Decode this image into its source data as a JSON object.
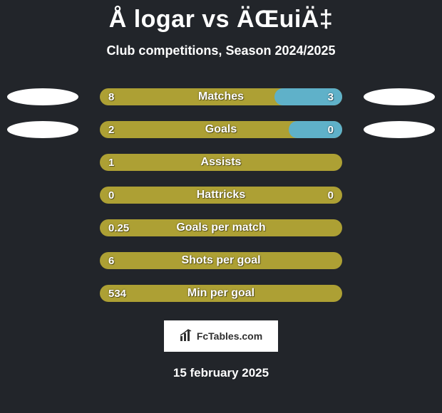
{
  "colors": {
    "background": "#22252a",
    "bar_primary": "#ada034",
    "bar_secondary": "#5fb1c9",
    "bar_split_right_bg": "#5fb1c9",
    "ellipse": "#ffffff",
    "logo_bg": "#ffffff",
    "text": "#ffffff"
  },
  "title": "Å logar vs ÄŒuiÄ‡",
  "subtitle": "Club competitions, Season 2024/2025",
  "date": "15 february 2025",
  "logo": {
    "text": "FcTables.com",
    "icon_name": "bar-chart-icon"
  },
  "stats": [
    {
      "label": "Matches",
      "left": {
        "value": "8",
        "width_pct": 72,
        "color": "#ada034"
      },
      "right": {
        "value": "3",
        "width_pct": 28,
        "color": "#5fb1c9"
      },
      "bg_color": "#ada034",
      "show_left_value": true,
      "show_right_value": true,
      "left_ellipse": true,
      "right_ellipse": true
    },
    {
      "label": "Goals",
      "left": {
        "value": "2",
        "width_pct": 78,
        "color": "#ada034"
      },
      "right": {
        "value": "0",
        "width_pct": 22,
        "color": "#5fb1c9"
      },
      "bg_color": "#ada034",
      "show_left_value": true,
      "show_right_value": true,
      "left_ellipse": true,
      "right_ellipse": true
    },
    {
      "label": "Assists",
      "left": {
        "value": "1",
        "width_pct": 100,
        "color": "#ada034"
      },
      "right": {
        "value": "",
        "width_pct": 0,
        "color": "#5fb1c9"
      },
      "bg_color": "#ada034",
      "show_left_value": true,
      "show_right_value": false,
      "left_ellipse": false,
      "right_ellipse": false
    },
    {
      "label": "Hattricks",
      "left": {
        "value": "0",
        "width_pct": 50,
        "color": "#ada034"
      },
      "right": {
        "value": "0",
        "width_pct": 50,
        "color": "#ada034"
      },
      "bg_color": "#ada034",
      "show_left_value": true,
      "show_right_value": true,
      "left_ellipse": false,
      "right_ellipse": false
    },
    {
      "label": "Goals per match",
      "left": {
        "value": "0.25",
        "width_pct": 100,
        "color": "#ada034"
      },
      "right": {
        "value": "",
        "width_pct": 0,
        "color": "#5fb1c9"
      },
      "bg_color": "#ada034",
      "show_left_value": true,
      "show_right_value": false,
      "left_ellipse": false,
      "right_ellipse": false
    },
    {
      "label": "Shots per goal",
      "left": {
        "value": "6",
        "width_pct": 100,
        "color": "#ada034"
      },
      "right": {
        "value": "",
        "width_pct": 0,
        "color": "#5fb1c9"
      },
      "bg_color": "#ada034",
      "show_left_value": true,
      "show_right_value": false,
      "left_ellipse": false,
      "right_ellipse": false
    },
    {
      "label": "Min per goal",
      "left": {
        "value": "534",
        "width_pct": 100,
        "color": "#ada034"
      },
      "right": {
        "value": "",
        "width_pct": 0,
        "color": "#5fb1c9"
      },
      "bg_color": "#ada034",
      "show_left_value": true,
      "show_right_value": false,
      "left_ellipse": false,
      "right_ellipse": false
    }
  ]
}
